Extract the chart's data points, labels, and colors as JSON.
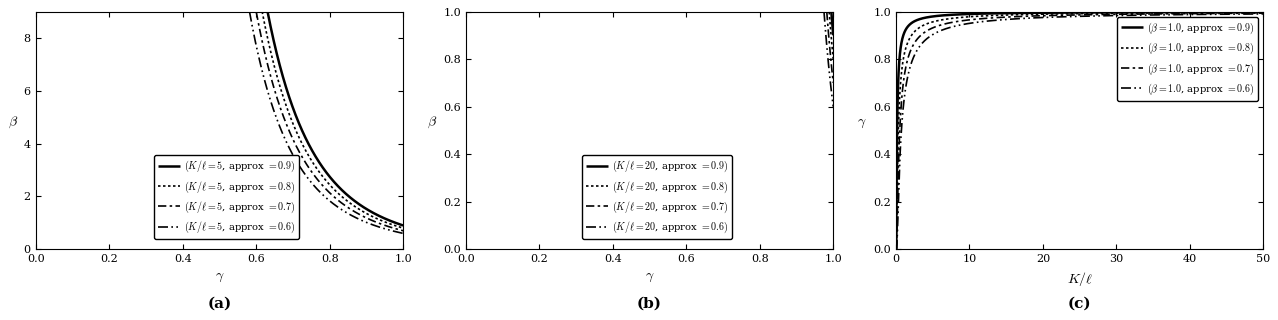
{
  "panel_a": {
    "K_over_l": 5,
    "approx_values": [
      0.9,
      0.8,
      0.7,
      0.6
    ],
    "linestyles": [
      "solid",
      "dotted",
      "dashdot",
      "dashed"
    ],
    "linewidths": [
      1.8,
      1.2,
      1.2,
      1.2
    ],
    "xlabel": "$\\gamma$",
    "ylabel": "$\\beta$",
    "xlim": [
      0,
      1
    ],
    "ylim": [
      0,
      9
    ],
    "xticks": [
      0,
      0.2,
      0.4,
      0.6,
      0.8,
      1.0
    ],
    "yticks": [
      0,
      2,
      4,
      6,
      8
    ],
    "label": "(a)",
    "legend_labels": [
      "$(K/\\ell = 5$, approx $= 0.9)$",
      "$(K/\\ell = 5$, approx $= 0.8)$",
      "$(K/\\ell = 5$, approx $= 0.7)$",
      "$(K/\\ell = 5$, approx $= 0.6)$"
    ],
    "legend_loc": "lower center"
  },
  "panel_b": {
    "K_over_l": 20,
    "approx_values": [
      0.9,
      0.8,
      0.7,
      0.6
    ],
    "linestyles": [
      "solid",
      "dotted",
      "dashdot",
      "dashed"
    ],
    "linewidths": [
      1.8,
      1.2,
      1.2,
      1.2
    ],
    "xlabel": "$\\gamma$",
    "ylabel": "$\\beta$",
    "xlim": [
      0,
      1
    ],
    "ylim": [
      0,
      1
    ],
    "xticks": [
      0,
      0.2,
      0.4,
      0.6,
      0.8,
      1.0
    ],
    "yticks": [
      0,
      0.2,
      0.4,
      0.6,
      0.8,
      1.0
    ],
    "label": "(b)",
    "legend_labels": [
      "$(K/\\ell = 20$, approx $= 0.9)$",
      "$(K/\\ell = 20$, approx $= 0.8)$",
      "$(K/\\ell = 20$, approx $= 0.7)$",
      "$(K/\\ell = 20$, approx $= 0.6)$"
    ],
    "legend_loc": "lower center"
  },
  "panel_c": {
    "beta": 1.0,
    "approx_values": [
      0.9,
      0.8,
      0.7,
      0.6
    ],
    "linestyles": [
      "solid",
      "dotted",
      "dashdot",
      "dashed"
    ],
    "linewidths": [
      1.8,
      1.2,
      1.2,
      1.2
    ],
    "xlabel": "$K/\\ell$",
    "ylabel": "$\\gamma$",
    "xlim": [
      0,
      50
    ],
    "ylim": [
      0,
      1
    ],
    "xticks": [
      0,
      10,
      20,
      30,
      40,
      50
    ],
    "yticks": [
      0,
      0.2,
      0.4,
      0.6,
      0.8,
      1.0
    ],
    "label": "(c)",
    "legend_labels": [
      "$(\\beta = 1.0$, approx $= 0.9)$",
      "$(\\beta = 1.0$, approx $= 0.8)$",
      "$(\\beta = 1.0$, approx $= 0.7)$",
      "$(\\beta = 1.0$, approx $= 0.6)$"
    ],
    "legend_loc": "upper right"
  },
  "line_color": "black"
}
